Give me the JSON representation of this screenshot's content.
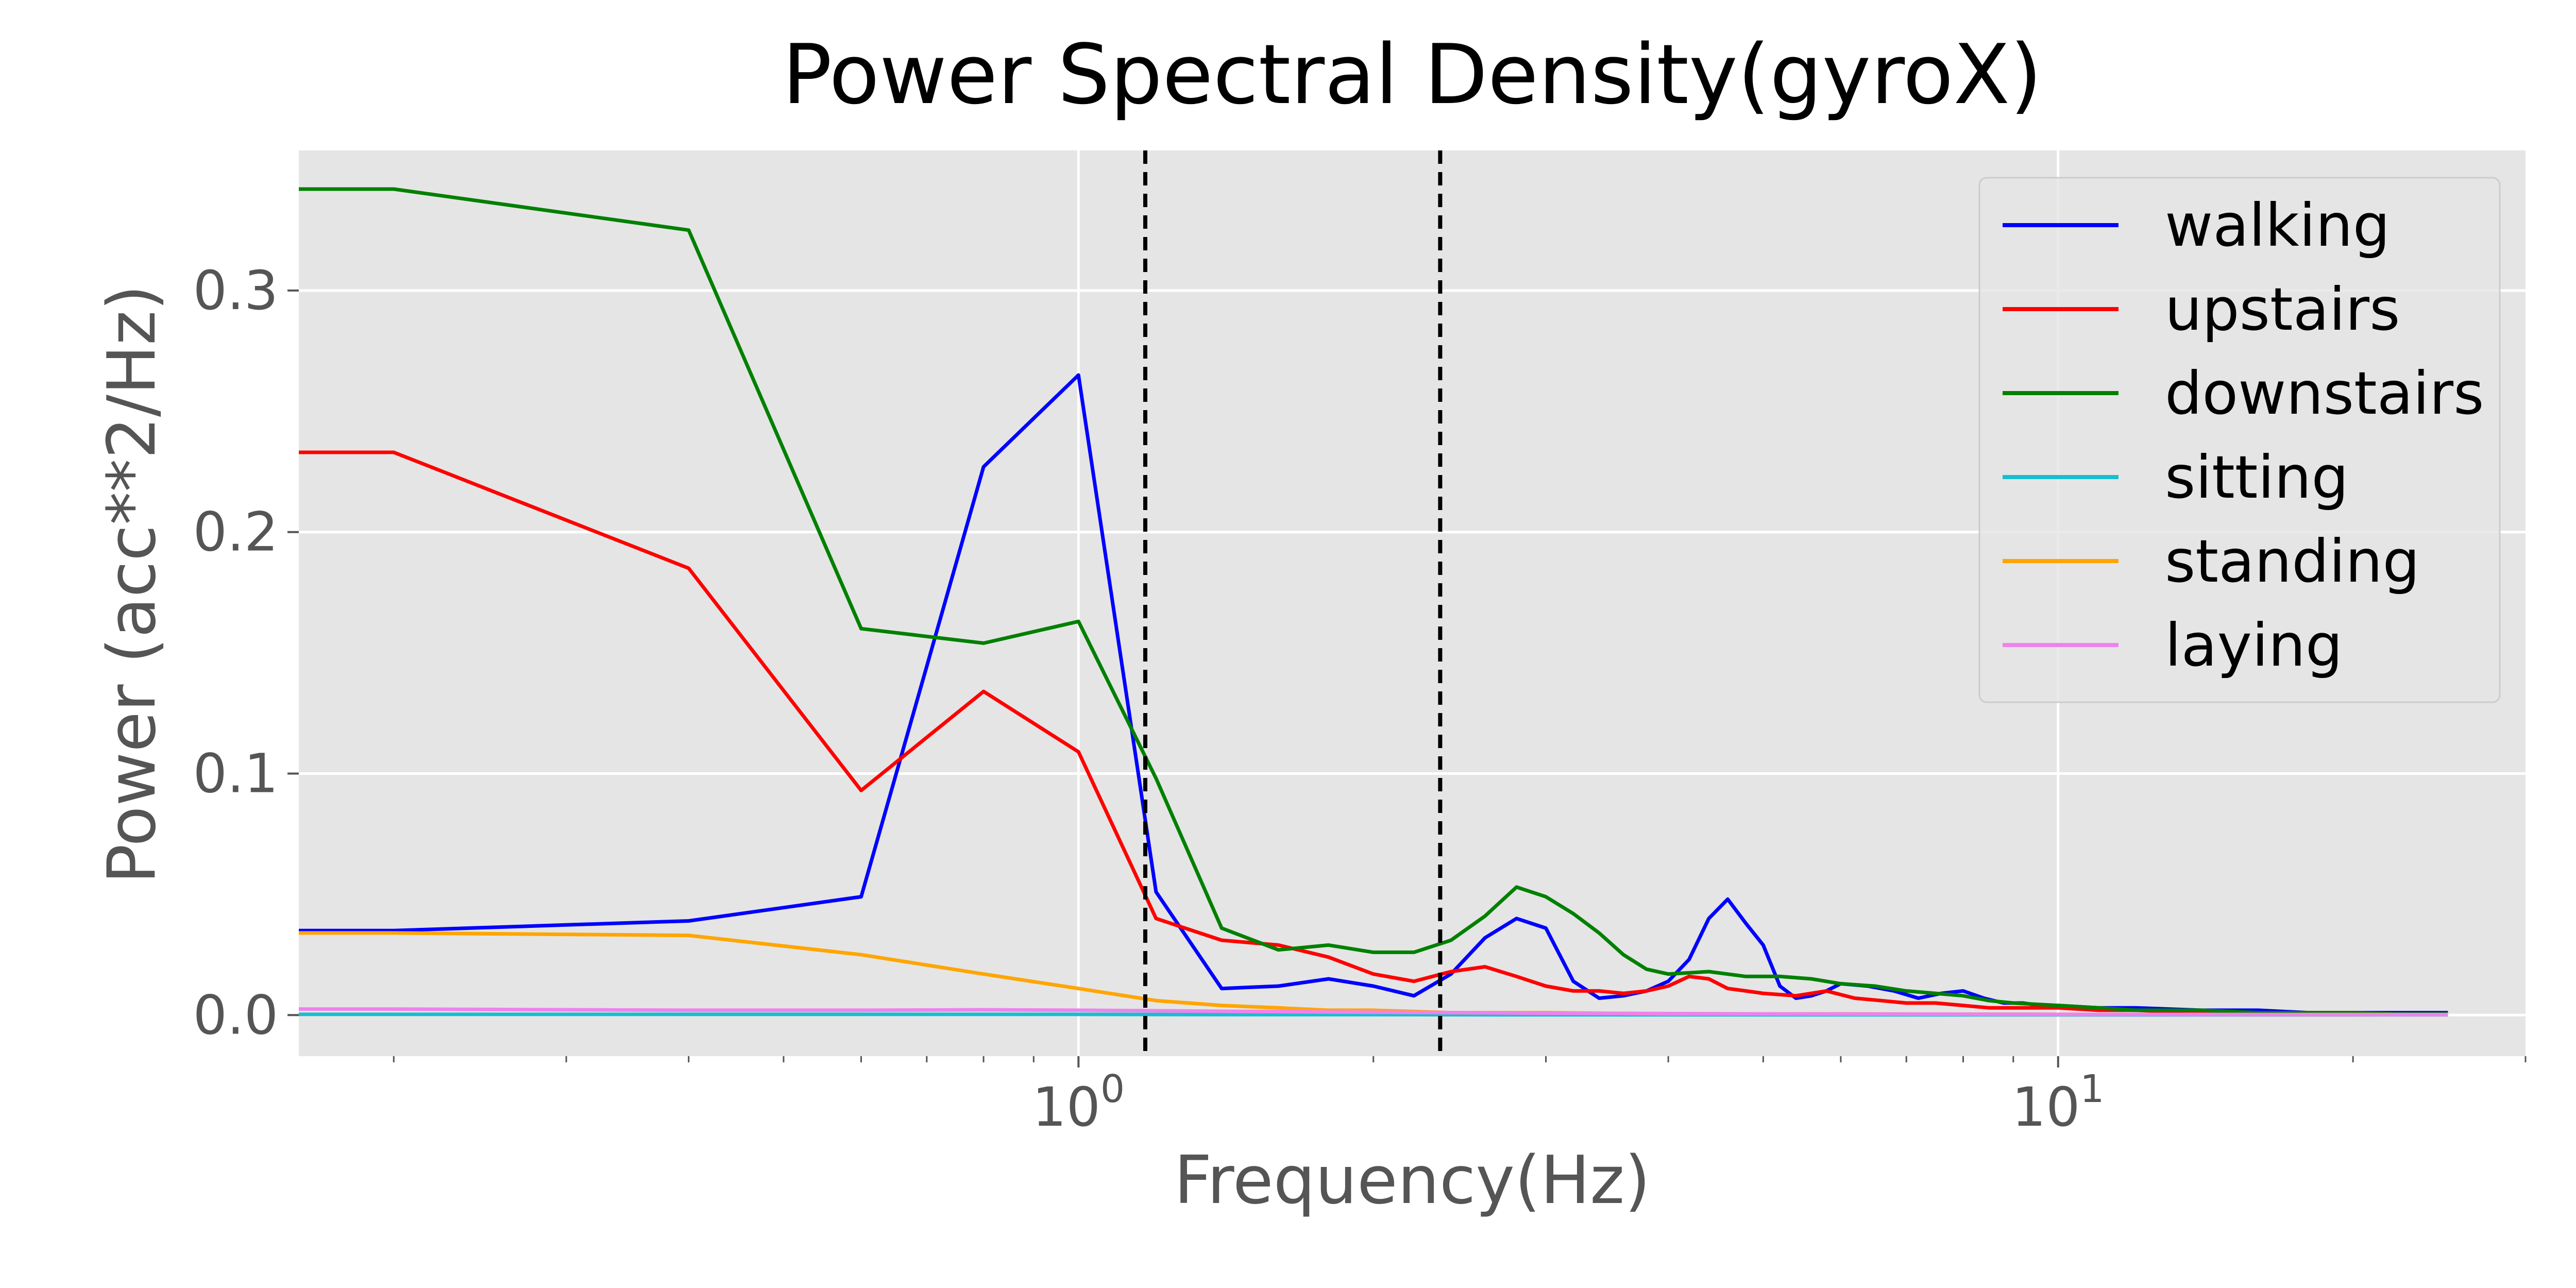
{
  "chart_data": {
    "type": "line",
    "title": "Power Spectral Density(gyroX)",
    "xlabel": "Frequency(Hz)",
    "ylabel": "Power (acc**2/Hz)",
    "x_scale": "log",
    "xlim": [
      0.16,
      30
    ],
    "ylim": [
      -0.017,
      0.358
    ],
    "grid": true,
    "background": "#e5e5e5",
    "legend_position": "top-right",
    "yticks": [
      {
        "value": 0.0,
        "label": "0.0"
      },
      {
        "value": 0.1,
        "label": "0.1"
      },
      {
        "value": 0.2,
        "label": "0.2"
      },
      {
        "value": 0.3,
        "label": "0.3"
      }
    ],
    "xticks": [
      {
        "value": 1,
        "base": "10",
        "exp": "0"
      },
      {
        "value": 10,
        "base": "10",
        "exp": "1"
      }
    ],
    "vlines": [
      1.17,
      2.34
    ],
    "series": [
      {
        "name": "walking",
        "color": "#0000ff",
        "x": [
          0.16,
          0.2,
          0.4,
          0.6,
          0.8,
          1.0,
          1.2,
          1.4,
          1.6,
          1.8,
          2.0,
          2.2,
          2.4,
          2.6,
          2.8,
          3.0,
          3.2,
          3.4,
          3.6,
          3.8,
          4.0,
          4.2,
          4.4,
          4.6,
          4.8,
          5.0,
          5.2,
          5.4,
          5.6,
          5.8,
          6.0,
          6.4,
          6.8,
          7.2,
          7.6,
          8.0,
          8.4,
          8.8,
          9.2,
          9.6,
          10,
          11,
          12,
          14,
          16,
          18,
          20,
          22,
          25
        ],
        "y": [
          0.035,
          0.035,
          0.039,
          0.049,
          0.227,
          0.265,
          0.051,
          0.011,
          0.012,
          0.015,
          0.012,
          0.008,
          0.017,
          0.032,
          0.04,
          0.036,
          0.014,
          0.007,
          0.008,
          0.01,
          0.014,
          0.023,
          0.04,
          0.048,
          0.038,
          0.029,
          0.012,
          0.007,
          0.008,
          0.01,
          0.013,
          0.012,
          0.01,
          0.007,
          0.009,
          0.01,
          0.007,
          0.005,
          0.005,
          0.004,
          0.004,
          0.003,
          0.003,
          0.002,
          0.002,
          0.001,
          0.001,
          0.001,
          0.001
        ]
      },
      {
        "name": "upstairs",
        "color": "#ff0000",
        "x": [
          0.16,
          0.2,
          0.4,
          0.6,
          0.8,
          1.0,
          1.2,
          1.4,
          1.6,
          1.8,
          2.0,
          2.2,
          2.4,
          2.6,
          2.8,
          3.0,
          3.2,
          3.4,
          3.6,
          3.8,
          4.0,
          4.2,
          4.4,
          4.6,
          4.8,
          5.0,
          5.4,
          5.8,
          6.2,
          6.6,
          7.0,
          7.5,
          8.0,
          8.5,
          9.0,
          10,
          11,
          12,
          14,
          16,
          18,
          20,
          22,
          25
        ],
        "y": [
          0.233,
          0.233,
          0.185,
          0.093,
          0.134,
          0.109,
          0.04,
          0.031,
          0.029,
          0.024,
          0.017,
          0.014,
          0.018,
          0.02,
          0.016,
          0.012,
          0.01,
          0.01,
          0.009,
          0.01,
          0.012,
          0.016,
          0.015,
          0.011,
          0.01,
          0.009,
          0.008,
          0.01,
          0.007,
          0.006,
          0.005,
          0.005,
          0.004,
          0.003,
          0.003,
          0.003,
          0.002,
          0.002,
          0.001,
          0.001,
          0.001,
          0.001,
          0.0005,
          0.0005
        ]
      },
      {
        "name": "downstairs",
        "color": "#008000",
        "x": [
          0.16,
          0.2,
          0.4,
          0.6,
          0.8,
          1.0,
          1.2,
          1.4,
          1.6,
          1.8,
          2.0,
          2.2,
          2.4,
          2.6,
          2.8,
          3.0,
          3.2,
          3.4,
          3.6,
          3.8,
          4.0,
          4.4,
          4.8,
          5.2,
          5.6,
          6.0,
          6.5,
          7.0,
          7.5,
          8.0,
          8.5,
          9.0,
          10,
          11,
          12,
          14,
          16,
          18,
          20,
          22,
          25
        ],
        "y": [
          0.342,
          0.342,
          0.325,
          0.16,
          0.154,
          0.163,
          0.098,
          0.036,
          0.027,
          0.029,
          0.026,
          0.026,
          0.031,
          0.041,
          0.053,
          0.049,
          0.042,
          0.034,
          0.025,
          0.019,
          0.017,
          0.018,
          0.016,
          0.016,
          0.015,
          0.013,
          0.012,
          0.01,
          0.009,
          0.008,
          0.006,
          0.005,
          0.004,
          0.003,
          0.002,
          0.002,
          0.001,
          0.001,
          0.001,
          0.0005,
          0.0005
        ]
      },
      {
        "name": "sitting",
        "color": "#17becf",
        "x": [
          0.16,
          0.2,
          0.4,
          0.6,
          0.8,
          1.0,
          1.5,
          2.0,
          3.0,
          5.0,
          10,
          25
        ],
        "y": [
          0.0003,
          0.0003,
          0.0003,
          0.0003,
          0.0003,
          0.0003,
          0.0002,
          0.0002,
          0.0001,
          0.0001,
          0.0001,
          0.0001
        ]
      },
      {
        "name": "standing",
        "color": "#ffa500",
        "x": [
          0.16,
          0.2,
          0.4,
          0.6,
          0.8,
          1.0,
          1.2,
          1.4,
          1.6,
          1.8,
          2.0,
          2.4,
          3.0,
          4.0,
          6.0,
          10,
          25
        ],
        "y": [
          0.034,
          0.034,
          0.033,
          0.025,
          0.017,
          0.011,
          0.006,
          0.004,
          0.003,
          0.002,
          0.002,
          0.001,
          0.001,
          0.0005,
          0.0005,
          0.0003,
          0.0002
        ]
      },
      {
        "name": "laying",
        "color": "#ee82ee",
        "x": [
          0.16,
          0.2,
          0.4,
          0.6,
          0.8,
          1.0,
          1.5,
          2.0,
          3.0,
          5.0,
          10,
          25
        ],
        "y": [
          0.0025,
          0.0025,
          0.002,
          0.002,
          0.0022,
          0.002,
          0.0015,
          0.0012,
          0.0008,
          0.0005,
          0.0003,
          0.0002
        ]
      }
    ]
  }
}
